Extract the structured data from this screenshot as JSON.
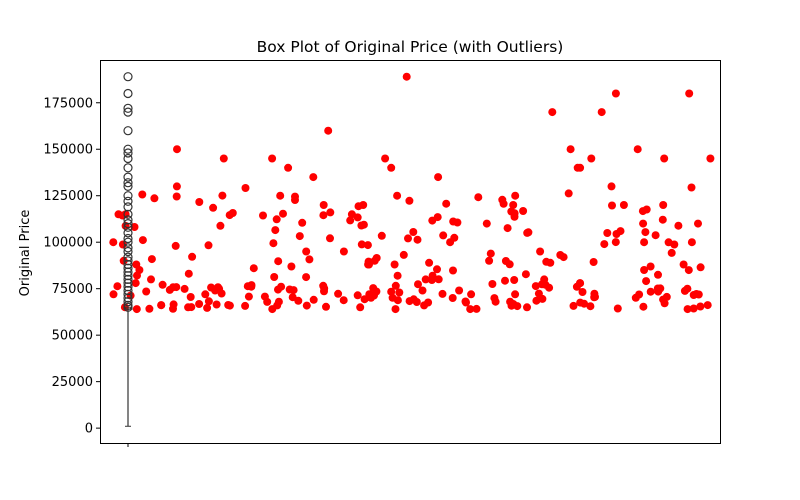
{
  "chart_data": {
    "type": "scatter",
    "title": "Box Plot of Original Price (with Outliers)",
    "xlabel": "",
    "ylabel": "Original Price",
    "ylim": [
      -8000,
      198000
    ],
    "y_ticks": [
      0,
      25000,
      50000,
      75000,
      100000,
      125000,
      150000,
      175000
    ],
    "y_tick_labels": [
      "0",
      "25000",
      "50000",
      "75000",
      "100000",
      "125000",
      "150000",
      "175000"
    ],
    "grid": false,
    "colors": {
      "points": "#ff0000",
      "box": "#333333",
      "outlier_edge": "#333333"
    },
    "box": {
      "whisker_low": 1000,
      "q1": 64500,
      "median": 64500,
      "q3": 64500,
      "outliers": [
        189000,
        180000,
        172000,
        170000,
        160000,
        150000,
        148000,
        145000,
        140000,
        135000,
        132000,
        130000,
        125000,
        122000,
        119000,
        115000,
        112000,
        110000,
        108000,
        105000,
        102000,
        100000,
        97000,
        95000,
        92000,
        90000,
        88000,
        86000,
        84000,
        82000,
        80000,
        78000,
        76000,
        74000,
        72000,
        70000,
        68000,
        66000,
        65000
      ]
    },
    "scatter": {
      "n": 300,
      "y_min": 64000,
      "y_max": 190000,
      "x_extent": [
        0,
        300
      ]
    }
  }
}
